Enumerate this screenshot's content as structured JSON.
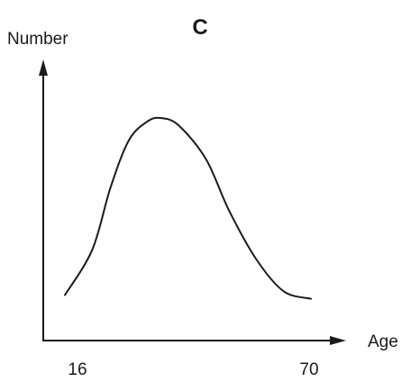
{
  "chart_data": {
    "type": "line",
    "title": "C",
    "ylabel": "Number",
    "xlabel": "Age",
    "x_ticks": [
      "16",
      "70"
    ],
    "xlim": [
      16,
      70
    ],
    "series": [
      {
        "values": [
          [
            16,
            0.06
          ],
          [
            22,
            0.3
          ],
          [
            26,
            0.63
          ],
          [
            30,
            0.88
          ],
          [
            34,
            0.98
          ],
          [
            37,
            1.0
          ],
          [
            41,
            0.96
          ],
          [
            47,
            0.78
          ],
          [
            52,
            0.51
          ],
          [
            58,
            0.25
          ],
          [
            64,
            0.08
          ],
          [
            70,
            0.04
          ]
        ]
      }
    ],
    "grid": false,
    "line_color": "#1a1a1a"
  }
}
